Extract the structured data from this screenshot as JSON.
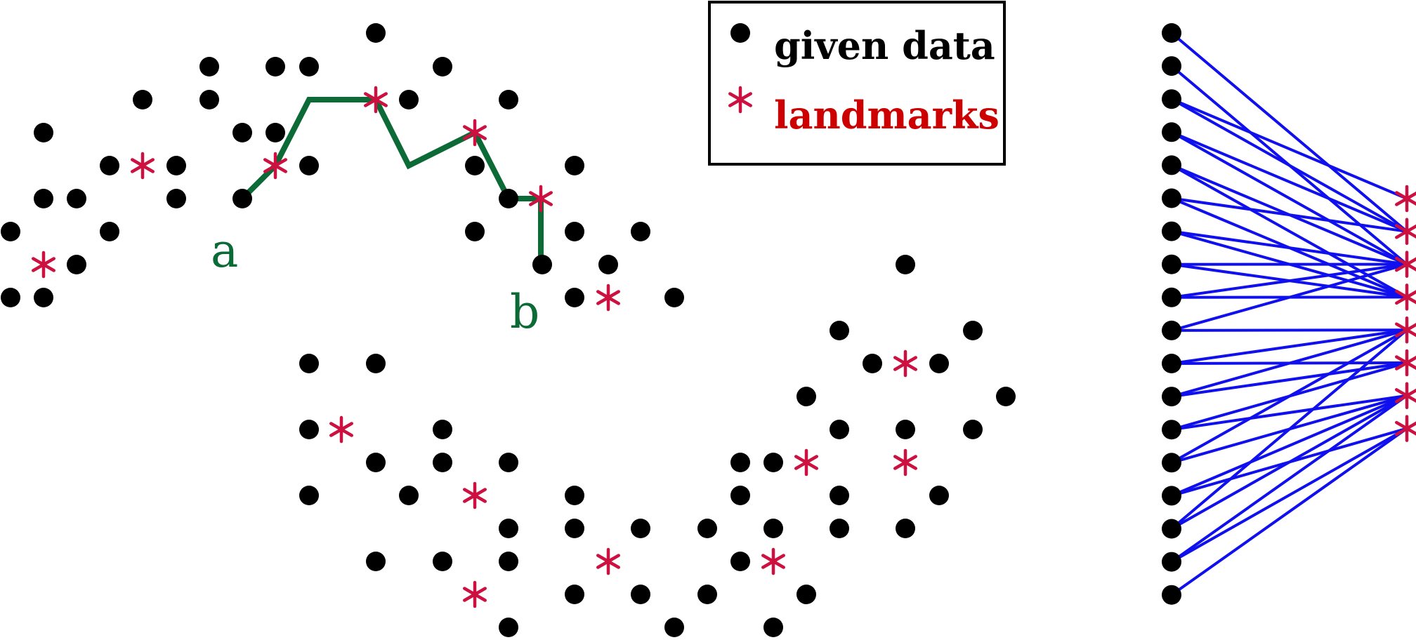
{
  "legend": {
    "given_label": "given data",
    "landmark_label": "landmarks",
    "landmark_symbol": "*"
  },
  "labels": {
    "a": "a",
    "b": "b"
  },
  "colors": {
    "data_point": "#000000",
    "landmark": "#cc1040",
    "landmark_text": "#cc0000",
    "path": "#0b6a36",
    "edge": "#1010ee",
    "legend_border": "#000000"
  },
  "connections": {
    "data_point_count": 18,
    "landmark_count": 8
  }
}
